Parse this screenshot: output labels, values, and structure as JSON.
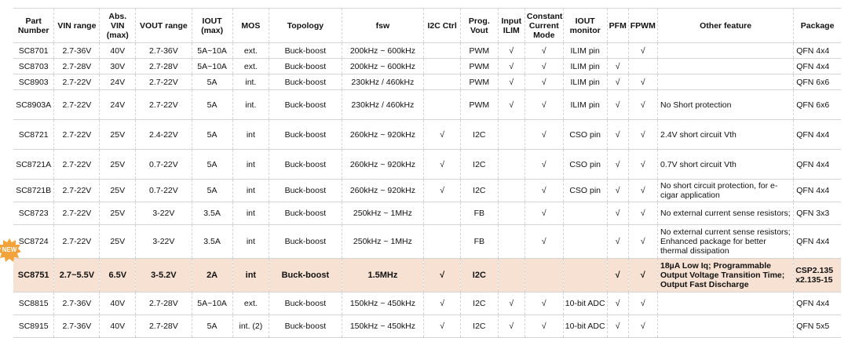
{
  "badge": {
    "text": "NEW",
    "color": "#f3a33c"
  },
  "highlight_color": "#f7e1d2",
  "headers": [
    "Part Number",
    "VIN range",
    "Abs. VIN (max)",
    "VOUT range",
    "IOUT (max)",
    "MOS",
    "Topology",
    "fsw",
    "I2C Ctrl",
    "Prog. Vout",
    "Input ILIM",
    "Constant Current Mode",
    "IOUT monitor",
    "PFM",
    "FPWM",
    "Other feature",
    "Package"
  ],
  "rows": [
    {
      "cells": [
        "SC8701",
        "2.7-36V",
        "40V",
        "2.7-36V",
        "5A~10A",
        "ext.",
        "Buck-boost",
        "200kHz ~ 600kHz",
        "",
        "PWM",
        "√",
        "√",
        "ILIM pin",
        "",
        "√",
        "",
        "QFN 4x4"
      ]
    },
    {
      "cells": [
        "SC8703",
        "2.7-28V",
        "30V",
        "2.7-28V",
        "5A~10A",
        "ext.",
        "Buck-boost",
        "200kHz ~ 600kHz",
        "",
        "PWM",
        "√",
        "√",
        "ILIM pin",
        "√",
        "",
        "",
        "QFN 4x4"
      ]
    },
    {
      "cells": [
        "SC8903",
        "2.7-22V",
        "24V",
        "2.7-22V",
        "5A",
        "int.",
        "Buck-boost",
        "230kHz / 460kHz",
        "",
        "PWM",
        "√",
        "√",
        "ILIM pin",
        "√",
        "√",
        "",
        "QFN 6x6"
      ]
    },
    {
      "cells": [
        "SC8903A",
        "2.7-22V",
        "24V",
        "2.7-22V",
        "5A",
        "int.",
        "Buck-boost",
        "230kHz / 460kHz",
        "",
        "PWM",
        "√",
        "√",
        "ILIM pin",
        "√",
        "√",
        "No Short protection",
        "QFN 6x6"
      ]
    },
    {
      "cells": [
        "SC8721",
        "2.7-22V",
        "25V",
        "2.4-22V",
        "5A",
        "int",
        "Buck-boost",
        "260kHz ~ 920kHz",
        "√",
        "I2C",
        "",
        "√",
        "CSO pin",
        "√",
        "√",
        "2.4V short circuit Vth",
        "QFN 4x4"
      ]
    },
    {
      "cells": [
        "SC8721A",
        "2.7-22V",
        "25V",
        "0.7-22V",
        "5A",
        "int",
        "Buck-boost",
        "260kHz ~ 920kHz",
        "√",
        "I2C",
        "",
        "√",
        "CSO pin",
        "√",
        "√",
        "0.7V short circuit Vth",
        "QFN 4x4"
      ]
    },
    {
      "cells": [
        "SC8721B",
        "2.7-22V",
        "25V",
        "0.7-22V",
        "5A",
        "int",
        "Buck-boost",
        "260kHz ~ 920kHz",
        "√",
        "I2C",
        "",
        "√",
        "CSO pin",
        "√",
        "√",
        "No short circuit protection, for e-cigar application",
        "QFN 4x4"
      ]
    },
    {
      "cells": [
        "SC8723",
        "2.7-22V",
        "25V",
        "3-22V",
        "3.5A",
        "int",
        "Buck-boost",
        "250kHz ~ 1MHz",
        "",
        "FB",
        "",
        "√",
        "",
        "√",
        "√",
        "No external current sense resistors;",
        "QFN 3x3"
      ]
    },
    {
      "cells": [
        "SC8724",
        "2.7-22V",
        "25V",
        "3-22V",
        "3.5A",
        "int",
        "Buck-boost",
        "250kHz ~ 1MHz",
        "",
        "FB",
        "",
        "√",
        "",
        "√",
        "√",
        "No external current sense resistors; Enhanced package for better thermal dissipation",
        "QFN 4x4"
      ]
    },
    {
      "cells": [
        "SC8751",
        "2.7~5.5V",
        "6.5V",
        "3-5.2V",
        "2A",
        "int",
        "Buck-boost",
        "1.5MHz",
        "√",
        "I2C",
        "",
        "",
        "",
        "√",
        "√",
        "18µA Low Iq;   Programmable Output Voltage Transition Time; Output Fast Discharge",
        "CSP2.135 x2.135-15"
      ]
    },
    {
      "cells": [
        "SC8815",
        "2.7-36V",
        "40V",
        "2.7-28V",
        "5A~10A",
        "ext.",
        "Buck-boost",
        "150kHz ~ 450kHz",
        "√",
        "I2C",
        "√",
        "√",
        "10-bit ADC",
        "√",
        "√",
        "",
        "QFN 4x4"
      ]
    },
    {
      "cells": [
        "SC8915",
        "2.7-36V",
        "40V",
        "2.7-28V",
        "5A",
        "int. (2)",
        "Buck-boost",
        "150kHz ~ 450kHz",
        "√",
        "I2C",
        "√",
        "√",
        "10-bit ADC",
        "√",
        "√",
        "",
        "QFN 5x5"
      ]
    }
  ]
}
